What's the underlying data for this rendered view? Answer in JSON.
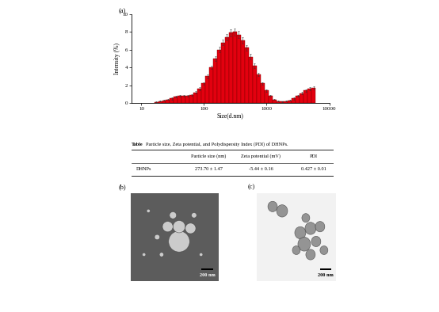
{
  "chart_data": {
    "type": "histogram",
    "label": "(a)",
    "x_label": "Size(d.nm)",
    "y_label": "Intensity (%)",
    "bins": [
      16.0,
      18.49,
      21.37,
      24.7,
      28.54,
      32.99,
      38.12,
      44.06,
      50.92,
      58.85,
      68.01,
      78.6,
      90.84,
      104.98,
      121.33,
      140.22,
      162.05,
      187.28,
      216.44,
      250.14,
      289.08,
      334.09,
      386.11,
      446.23,
      515.71,
      596.01,
      688.81,
      796.06,
      920.01,
      1063.3,
      1228.8,
      1420.1,
      1641.2,
      1896.8,
      2192.1,
      2533.4,
      2927.9,
      3383.8,
      3910.6,
      4519.5,
      5223.2,
      6036.5
    ],
    "values": [
      0.1,
      0.2,
      0.3,
      0.4,
      0.5,
      0.7,
      0.8,
      0.8,
      0.8,
      0.9,
      1.2,
      1.6,
      2.2,
      3.0,
      4.0,
      5.0,
      6.0,
      6.8,
      7.4,
      7.9,
      8.0,
      7.7,
      7.0,
      6.2,
      5.2,
      4.2,
      3.2,
      2.2,
      1.4,
      0.8,
      0.4,
      0.2,
      0.15,
      0.2,
      0.3,
      0.5,
      0.8,
      1.1,
      1.4,
      1.6,
      1.7
    ],
    "errors": [
      0.05,
      0.05,
      0.05,
      0.05,
      0.1,
      0.1,
      0.1,
      0.1,
      0.1,
      0.1,
      0.1,
      0.15,
      0.15,
      0.2,
      0.2,
      0.25,
      0.3,
      0.3,
      0.35,
      0.4,
      0.4,
      0.4,
      0.35,
      0.3,
      0.3,
      0.25,
      0.2,
      0.15,
      0.15,
      0.1,
      0.05,
      0.05,
      0.05,
      0.05,
      0.05,
      0.1,
      0.1,
      0.15,
      0.15,
      0.2,
      0.2
    ],
    "color": "#e3000f",
    "log": "x",
    "xlim": [
      7,
      10000
    ],
    "xticks": [
      10,
      100,
      1000,
      10000
    ],
    "ylim": [
      0,
      10
    ],
    "yticks": [
      0,
      2,
      4,
      6,
      8,
      10
    ]
  },
  "table": {
    "label": "Table",
    "caption": "Particle size, Zeta potential, and Polydispersity Index (PDI) of DHNPs.",
    "columns": [
      "Particle size (nm)",
      "Zeta potential (mV)",
      "PDI"
    ],
    "rows": [
      {
        "label": "DHNPs",
        "cells": [
          "273.70 ± 1.47",
          "-5.44 ± 0.16",
          "0.427 ± 0.01"
        ]
      }
    ]
  },
  "images": [
    {
      "label": "(b)",
      "scale_bar": "200 nm"
    },
    {
      "label": "(c)",
      "scale_bar": "200 nm"
    }
  ]
}
